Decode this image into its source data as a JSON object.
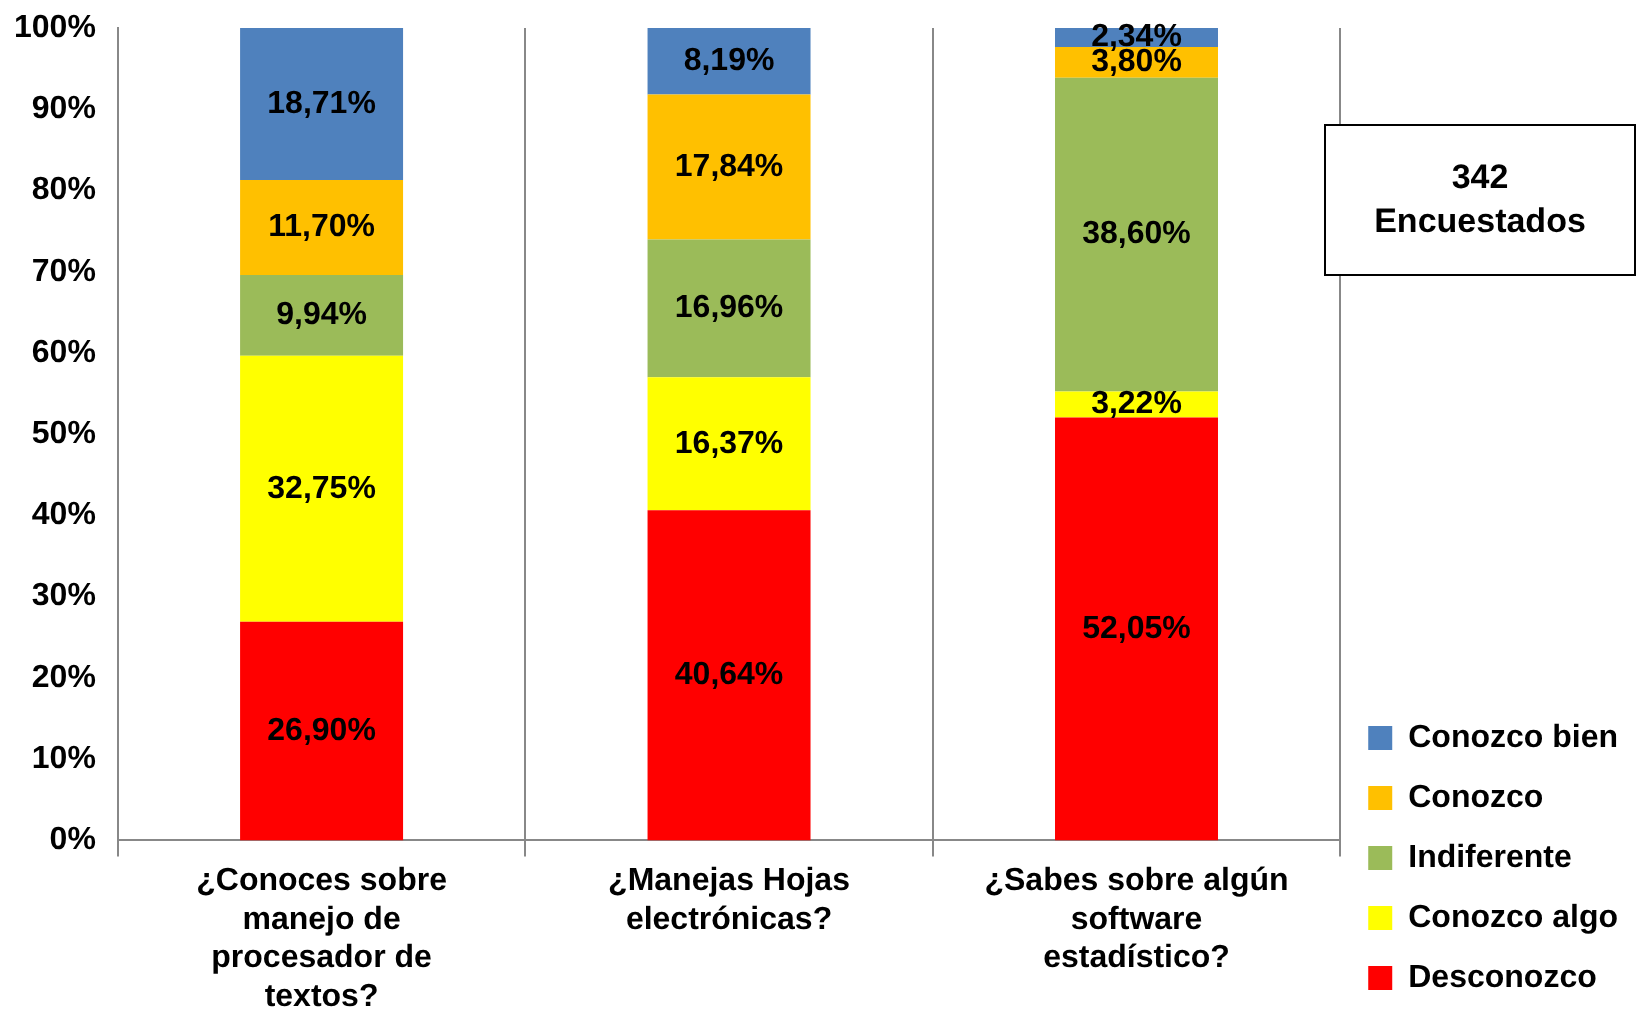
{
  "chart_data": {
    "type": "bar",
    "stacked": true,
    "categories": [
      "¿Conoces sobre manejo de procesador de textos?",
      "¿Manejas Hojas electrónicas?",
      "¿Sabes sobre algún software estadístico?"
    ],
    "series": [
      {
        "name": "Desconozco",
        "color": "#ff0000",
        "values": [
          26.9,
          40.64,
          52.05
        ],
        "value_labels": [
          "26,90%",
          "40,64%",
          "52,05%"
        ]
      },
      {
        "name": "Conozco algo",
        "color": "#ffff00",
        "values": [
          32.75,
          16.37,
          3.22
        ],
        "value_labels": [
          "32,75%",
          "16,37%",
          "3,22%"
        ]
      },
      {
        "name": "Indiferente",
        "color": "#9bbb59",
        "values": [
          9.94,
          16.96,
          38.6
        ],
        "value_labels": [
          "9,94%",
          "16,96%",
          "38,60%"
        ]
      },
      {
        "name": "Conozco",
        "color": "#ffc000",
        "values": [
          11.7,
          17.84,
          3.8
        ],
        "value_labels": [
          "11,70%",
          "17,84%",
          "3,80%"
        ]
      },
      {
        "name": "Conozco bien",
        "color": "#4f81bd",
        "values": [
          18.71,
          8.19,
          2.34
        ],
        "value_labels": [
          "18,71%",
          "8,19%",
          "2,34%"
        ]
      }
    ],
    "ylim": [
      0,
      100
    ],
    "yticks": [
      {
        "value": 0,
        "label": "0%"
      },
      {
        "value": 10,
        "label": "10%"
      },
      {
        "value": 20,
        "label": "20%"
      },
      {
        "value": 30,
        "label": "30%"
      },
      {
        "value": 40,
        "label": "40%"
      },
      {
        "value": 50,
        "label": "50%"
      },
      {
        "value": 60,
        "label": "60%"
      },
      {
        "value": 70,
        "label": "70%"
      },
      {
        "value": 80,
        "label": "80%"
      },
      {
        "value": 90,
        "label": "90%"
      },
      {
        "value": 100,
        "label": "100%"
      }
    ],
    "grid": "x",
    "legend": "bottom right",
    "annotations": [
      "342 Encuestados"
    ]
  }
}
